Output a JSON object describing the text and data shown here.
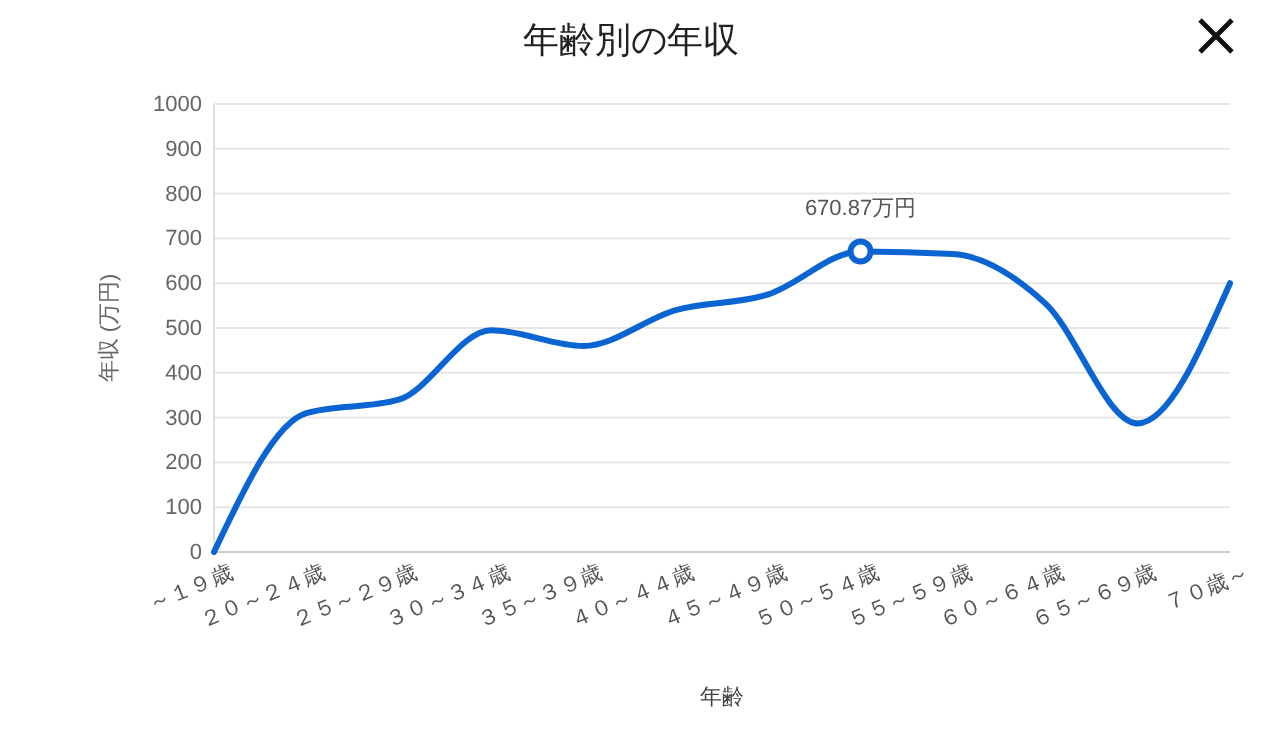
{
  "chart_data": {
    "type": "line",
    "title": "年齢別の年収",
    "xlabel": "年齢",
    "ylabel": "年収 (万円)",
    "categories": [
      "～１９歳",
      "２０～２４歳",
      "２５～２９歳",
      "３０～３４歳",
      "３５～３９歳",
      "４０～４４歳",
      "４５～４９歳",
      "５０～５４歳",
      "５５～５９歳",
      "６０～６４歳",
      "６５～６９歳",
      "７０歳～"
    ],
    "series": [
      {
        "color": "#0a64d2",
        "values": [
          0,
          310,
          340,
          495,
          460,
          540,
          575,
          670.87,
          665,
          555,
          287,
          600
        ]
      }
    ],
    "ylim": [
      0,
      1000
    ],
    "yticks": [
      0,
      100,
      200,
      300,
      400,
      500,
      600,
      700,
      800,
      900,
      1000
    ],
    "grid": "y",
    "annotations": [
      {
        "text": "670.87万円",
        "x": "５０～５４歳",
        "y": 670.87
      }
    ]
  }
}
